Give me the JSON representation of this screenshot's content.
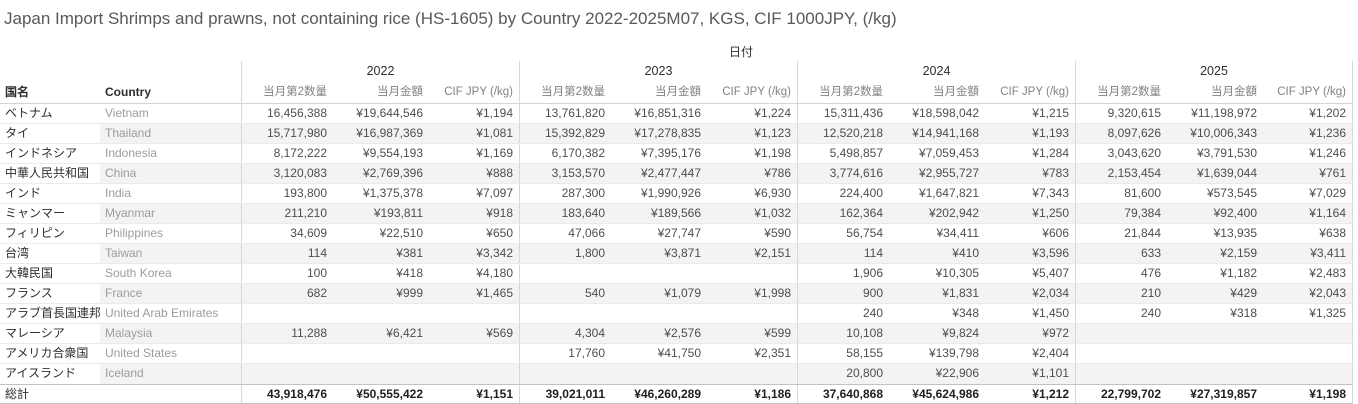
{
  "chart_data": {
    "type": "table",
    "title": "Japan Import Shrimps and prawns, not containing rice (HS-1605) by Country 2022-2025M07, KGS, CIF 1000JPY, (/kg)",
    "column_field_label": "日付",
    "row_headers": [
      "国名",
      "Country"
    ],
    "year_groups": [
      "2022",
      "2023",
      "2024",
      "2025"
    ],
    "metrics_per_year": [
      "当月第2数量",
      "当月金額",
      "CIF JPY (/kg)"
    ],
    "rows": [
      {
        "jp": "ベトナム",
        "en": "Vietnam",
        "values": [
          [
            "16,456,388",
            "¥19,644,546",
            "¥1,194"
          ],
          [
            "13,761,820",
            "¥16,851,316",
            "¥1,224"
          ],
          [
            "15,311,436",
            "¥18,598,042",
            "¥1,215"
          ],
          [
            "9,320,615",
            "¥11,198,972",
            "¥1,202"
          ]
        ]
      },
      {
        "jp": "タイ",
        "en": "Thailand",
        "values": [
          [
            "15,717,980",
            "¥16,987,369",
            "¥1,081"
          ],
          [
            "15,392,829",
            "¥17,278,835",
            "¥1,123"
          ],
          [
            "12,520,218",
            "¥14,941,168",
            "¥1,193"
          ],
          [
            "8,097,626",
            "¥10,006,343",
            "¥1,236"
          ]
        ]
      },
      {
        "jp": "インドネシア",
        "en": "Indonesia",
        "values": [
          [
            "8,172,222",
            "¥9,554,193",
            "¥1,169"
          ],
          [
            "6,170,382",
            "¥7,395,176",
            "¥1,198"
          ],
          [
            "5,498,857",
            "¥7,059,453",
            "¥1,284"
          ],
          [
            "3,043,620",
            "¥3,791,530",
            "¥1,246"
          ]
        ]
      },
      {
        "jp": "中華人民共和国",
        "en": "China",
        "values": [
          [
            "3,120,083",
            "¥2,769,396",
            "¥888"
          ],
          [
            "3,153,570",
            "¥2,477,447",
            "¥786"
          ],
          [
            "3,774,616",
            "¥2,955,727",
            "¥783"
          ],
          [
            "2,153,454",
            "¥1,639,044",
            "¥761"
          ]
        ]
      },
      {
        "jp": "インド",
        "en": "India",
        "values": [
          [
            "193,800",
            "¥1,375,378",
            "¥7,097"
          ],
          [
            "287,300",
            "¥1,990,926",
            "¥6,930"
          ],
          [
            "224,400",
            "¥1,647,821",
            "¥7,343"
          ],
          [
            "81,600",
            "¥573,545",
            "¥7,029"
          ]
        ]
      },
      {
        "jp": "ミャンマー",
        "en": "Myanmar",
        "values": [
          [
            "211,210",
            "¥193,811",
            "¥918"
          ],
          [
            "183,640",
            "¥189,566",
            "¥1,032"
          ],
          [
            "162,364",
            "¥202,942",
            "¥1,250"
          ],
          [
            "79,384",
            "¥92,400",
            "¥1,164"
          ]
        ]
      },
      {
        "jp": "フィリピン",
        "en": "Philippines",
        "values": [
          [
            "34,609",
            "¥22,510",
            "¥650"
          ],
          [
            "47,066",
            "¥27,747",
            "¥590"
          ],
          [
            "56,754",
            "¥34,411",
            "¥606"
          ],
          [
            "21,844",
            "¥13,935",
            "¥638"
          ]
        ]
      },
      {
        "jp": "台湾",
        "en": "Taiwan",
        "values": [
          [
            "114",
            "¥381",
            "¥3,342"
          ],
          [
            "1,800",
            "¥3,871",
            "¥2,151"
          ],
          [
            "114",
            "¥410",
            "¥3,596"
          ],
          [
            "633",
            "¥2,159",
            "¥3,411"
          ]
        ]
      },
      {
        "jp": "大韓民国",
        "en": "South Korea",
        "values": [
          [
            "100",
            "¥418",
            "¥4,180"
          ],
          [
            "",
            "",
            ""
          ],
          [
            "1,906",
            "¥10,305",
            "¥5,407"
          ],
          [
            "476",
            "¥1,182",
            "¥2,483"
          ]
        ]
      },
      {
        "jp": "フランス",
        "en": "France",
        "values": [
          [
            "682",
            "¥999",
            "¥1,465"
          ],
          [
            "540",
            "¥1,079",
            "¥1,998"
          ],
          [
            "900",
            "¥1,831",
            "¥2,034"
          ],
          [
            "210",
            "¥429",
            "¥2,043"
          ]
        ]
      },
      {
        "jp": "アラブ首長国連邦",
        "en": "United Arab Emirates",
        "values": [
          [
            "",
            "",
            ""
          ],
          [
            "",
            "",
            ""
          ],
          [
            "240",
            "¥348",
            "¥1,450"
          ],
          [
            "240",
            "¥318",
            "¥1,325"
          ]
        ]
      },
      {
        "jp": "マレーシア",
        "en": "Malaysia",
        "values": [
          [
            "11,288",
            "¥6,421",
            "¥569"
          ],
          [
            "4,304",
            "¥2,576",
            "¥599"
          ],
          [
            "10,108",
            "¥9,824",
            "¥972"
          ],
          [
            "",
            "",
            ""
          ]
        ]
      },
      {
        "jp": "アメリカ合衆国",
        "en": "United States",
        "values": [
          [
            "",
            "",
            ""
          ],
          [
            "17,760",
            "¥41,750",
            "¥2,351"
          ],
          [
            "58,155",
            "¥139,798",
            "¥2,404"
          ],
          [
            "",
            "",
            ""
          ]
        ]
      },
      {
        "jp": "アイスランド",
        "en": "Iceland",
        "values": [
          [
            "",
            "",
            ""
          ],
          [
            "",
            "",
            ""
          ],
          [
            "20,800",
            "¥22,906",
            "¥1,101"
          ],
          [
            "",
            "",
            ""
          ]
        ]
      }
    ],
    "total": {
      "jp": "総計",
      "en": "",
      "values": [
        [
          "43,918,476",
          "¥50,555,422",
          "¥1,151"
        ],
        [
          "39,021,011",
          "¥46,260,289",
          "¥1,186"
        ],
        [
          "37,640,868",
          "¥45,624,986",
          "¥1,212"
        ],
        [
          "22,799,702",
          "¥27,319,857",
          "¥1,198"
        ]
      ]
    }
  }
}
